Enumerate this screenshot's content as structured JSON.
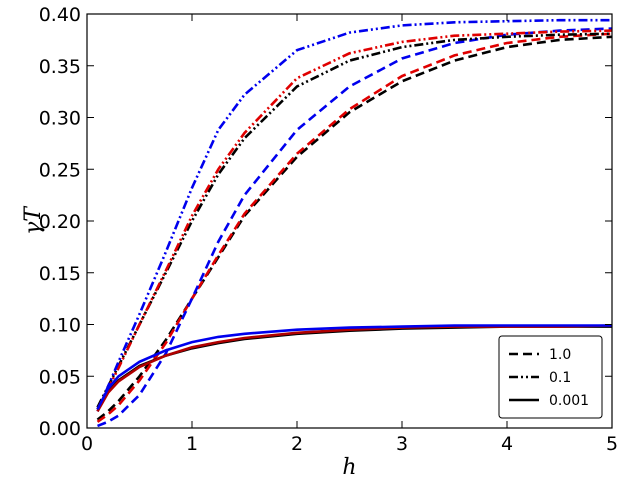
{
  "chart_data": {
    "type": "line",
    "xlabel": "h",
    "ylabel": "γT",
    "xlim": [
      0,
      5
    ],
    "ylim": [
      0,
      0.4
    ],
    "x_ticks": [
      "0",
      "1",
      "2",
      "3",
      "4",
      "5"
    ],
    "y_ticks": [
      "0.00",
      "0.05",
      "0.10",
      "0.15",
      "0.20",
      "0.25",
      "0.30",
      "0.35",
      "0.40"
    ],
    "grid": false,
    "legend_placement": "bottom-right",
    "legend": [
      {
        "label": "1.0",
        "style": "dashed"
      },
      {
        "label": "0.1",
        "style": "dashdotdot"
      },
      {
        "label": "0.001",
        "style": "solid"
      }
    ],
    "x": [
      0.1,
      0.2,
      0.3,
      0.5,
      0.75,
      1.0,
      1.25,
      1.5,
      2.0,
      2.5,
      3.0,
      3.5,
      4.0,
      4.5,
      5.0
    ],
    "series": [
      {
        "color": "#000000",
        "style": "dashed",
        "values": [
          0.008,
          0.016,
          0.026,
          0.05,
          0.085,
          0.125,
          0.165,
          0.205,
          0.262,
          0.305,
          0.335,
          0.355,
          0.368,
          0.375,
          0.378
        ]
      },
      {
        "color": "#e00000",
        "style": "dashed",
        "values": [
          0.006,
          0.013,
          0.022,
          0.046,
          0.082,
          0.125,
          0.167,
          0.207,
          0.265,
          0.308,
          0.34,
          0.36,
          0.372,
          0.378,
          0.381
        ]
      },
      {
        "color": "#0000ee",
        "style": "dashed",
        "values": [
          0.002,
          0.006,
          0.012,
          0.032,
          0.072,
          0.125,
          0.18,
          0.225,
          0.288,
          0.33,
          0.357,
          0.372,
          0.38,
          0.384,
          0.386
        ]
      },
      {
        "color": "#000000",
        "style": "dashdotdot",
        "values": [
          0.02,
          0.04,
          0.06,
          0.1,
          0.15,
          0.2,
          0.245,
          0.28,
          0.33,
          0.355,
          0.368,
          0.375,
          0.378,
          0.38,
          0.381
        ]
      },
      {
        "color": "#e00000",
        "style": "dashdotdot",
        "values": [
          0.018,
          0.038,
          0.058,
          0.1,
          0.152,
          0.205,
          0.25,
          0.285,
          0.338,
          0.362,
          0.373,
          0.379,
          0.381,
          0.383,
          0.384
        ]
      },
      {
        "color": "#0000ee",
        "style": "dashdotdot",
        "values": [
          0.016,
          0.04,
          0.064,
          0.11,
          0.17,
          0.232,
          0.288,
          0.322,
          0.365,
          0.382,
          0.389,
          0.392,
          0.393,
          0.394,
          0.394
        ]
      },
      {
        "color": "#000000",
        "style": "solid",
        "values": [
          0.018,
          0.035,
          0.046,
          0.06,
          0.07,
          0.077,
          0.082,
          0.086,
          0.091,
          0.094,
          0.096,
          0.097,
          0.098,
          0.098,
          0.098
        ]
      },
      {
        "color": "#b00000",
        "style": "solid",
        "values": [
          0.016,
          0.034,
          0.045,
          0.059,
          0.07,
          0.078,
          0.083,
          0.087,
          0.092,
          0.095,
          0.097,
          0.098,
          0.098,
          0.098,
          0.099
        ]
      },
      {
        "color": "#0000ee",
        "style": "solid",
        "values": [
          0.018,
          0.038,
          0.05,
          0.064,
          0.075,
          0.083,
          0.088,
          0.091,
          0.095,
          0.097,
          0.098,
          0.099,
          0.099,
          0.099,
          0.099
        ]
      }
    ]
  }
}
